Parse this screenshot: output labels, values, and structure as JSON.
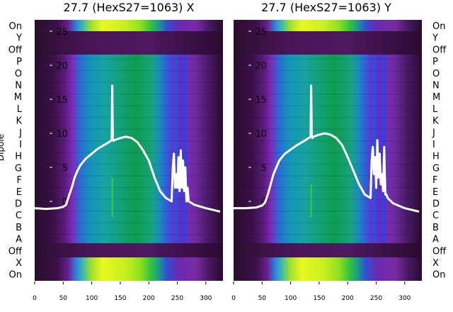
{
  "chart_data": [
    {
      "type": "heatmap",
      "title": "27.7 (HexS27=1063) X",
      "ylabel": "Dipole",
      "categories": [
        "On",
        "Y",
        "Off",
        "P",
        "O",
        "N",
        "M",
        "L",
        "K",
        "J",
        "I",
        "H",
        "G",
        "F",
        "E",
        "D",
        "C",
        "B",
        "A",
        "Off",
        "X",
        "On"
      ],
      "x_ticks": [
        0,
        50,
        100,
        150,
        200,
        250,
        300
      ],
      "xlim": [
        0,
        330
      ],
      "trace_ticks": [
        25,
        20,
        15,
        10,
        5,
        0
      ],
      "trace_ylim": [
        -2,
        26
      ],
      "trace": {
        "x": [
          0,
          20,
          40,
          50,
          55,
          60,
          65,
          70,
          75,
          80,
          90,
          100,
          110,
          120,
          130,
          135,
          136,
          137,
          138,
          140,
          150,
          160,
          170,
          180,
          190,
          200,
          210,
          220,
          230,
          240,
          242,
          244,
          246,
          248,
          250,
          252,
          254,
          256,
          258,
          260,
          262,
          264,
          266,
          268,
          270,
          280,
          300,
          325
        ],
        "y": [
          -1,
          -1.1,
          -1,
          -0.8,
          -0.5,
          0.8,
          2,
          3.5,
          4.5,
          5.3,
          6.3,
          7,
          7.7,
          8.2,
          8.7,
          9,
          17,
          9,
          8.9,
          9,
          9.3,
          9.5,
          9.3,
          8.7,
          7.5,
          6,
          3.5,
          1.5,
          0.5,
          0,
          5,
          7,
          2,
          4,
          2,
          6.5,
          1.5,
          7.5,
          2,
          6,
          1.5,
          5,
          0,
          2,
          0,
          -0.5,
          -1,
          -1.5
        ]
      },
      "green_spike": {
        "x": 136,
        "y_top": 3.5,
        "y_bottom": -2.3
      }
    },
    {
      "type": "heatmap",
      "title": "27.7 (HexS27=1063) Y",
      "categories": [
        "On",
        "Y",
        "Off",
        "P",
        "O",
        "N",
        "M",
        "L",
        "K",
        "J",
        "I",
        "H",
        "G",
        "F",
        "E",
        "D",
        "C",
        "B",
        "A",
        "Off",
        "X",
        "On"
      ],
      "x_ticks": [
        0,
        50,
        100,
        150,
        200,
        250,
        300
      ],
      "xlim": [
        0,
        330
      ],
      "trace_ticks": [
        25,
        20,
        15,
        10,
        5,
        0
      ],
      "trace_ylim": [
        -2,
        26
      ],
      "trace": {
        "x": [
          0,
          20,
          40,
          50,
          55,
          60,
          65,
          70,
          75,
          80,
          90,
          100,
          110,
          120,
          130,
          135,
          136,
          137,
          138,
          140,
          150,
          160,
          170,
          180,
          190,
          200,
          210,
          220,
          230,
          240,
          242,
          244,
          246,
          248,
          250,
          252,
          254,
          256,
          258,
          260,
          262,
          264,
          266,
          268,
          270,
          280,
          300,
          325
        ],
        "y": [
          -1,
          -1,
          -0.9,
          -0.6,
          -0.2,
          1,
          2.5,
          4,
          5,
          6,
          7,
          7.6,
          8.2,
          8.7,
          9.2,
          9.5,
          17,
          9.5,
          9.3,
          9.5,
          9.8,
          10,
          9.8,
          9.3,
          8.3,
          6.5,
          4.5,
          2.5,
          1,
          0.5,
          6,
          8,
          4,
          6.5,
          2,
          9,
          3.5,
          7,
          2.5,
          4,
          1.5,
          8,
          1,
          1,
          0.5,
          -0.3,
          -1,
          -1.5
        ]
      },
      "green_spike": {
        "x": 136,
        "y_top": 2.5,
        "y_bottom": -2.3
      }
    }
  ]
}
